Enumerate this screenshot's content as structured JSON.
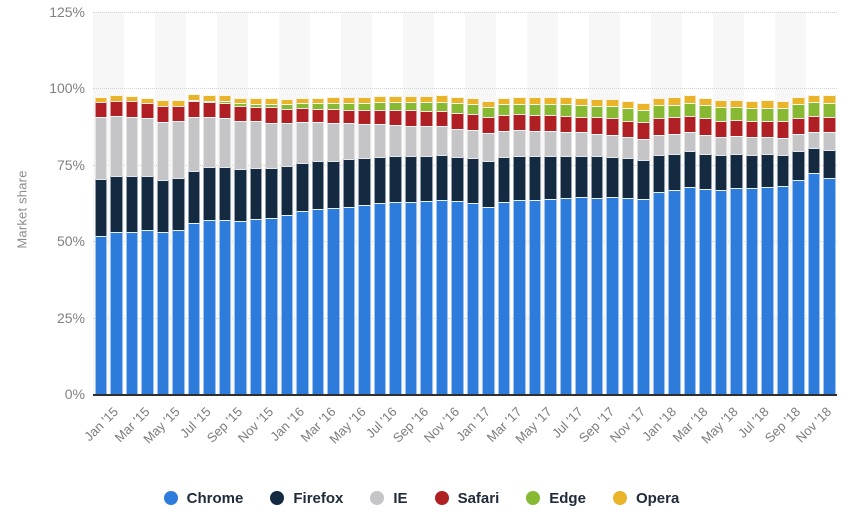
{
  "y_axis": {
    "title": "Market share",
    "tick_labels": [
      "0%",
      "25%",
      "50%",
      "75%",
      "100%",
      "125%"
    ]
  },
  "legend": {
    "items": [
      "Chrome",
      "Firefox",
      "IE",
      "Safari",
      "Edge",
      "Opera"
    ]
  },
  "colors": {
    "chrome": "#2d7bdb",
    "firefox": "#132a40",
    "ie": "#c5c5c7",
    "safari": "#b01f24",
    "edge": "#87ba32",
    "opera": "#e9b32a",
    "band": "#f7f7f7",
    "grid": "#d2d2d2",
    "baseline": "#2e2e2e",
    "axis_text": "#7c7c7c",
    "legend_text": "#212b3b"
  },
  "chart_data": {
    "type": "bar",
    "stacked": true,
    "title": "",
    "xlabel": "",
    "ylabel": "Market share",
    "ylim": [
      0,
      125
    ],
    "yticks": [
      0,
      25,
      50,
      75,
      100,
      125
    ],
    "grid": "horizontal-dotted",
    "legend_position": "bottom",
    "x": [
      "Jan '15",
      "Feb '15",
      "Mar '15",
      "Apr '15",
      "May '15",
      "Jun '15",
      "Jul '15",
      "Aug '15",
      "Sep '15",
      "Oct '15",
      "Nov '15",
      "Dec '15",
      "Jan '16",
      "Feb '16",
      "Mar '16",
      "Apr '16",
      "May '16",
      "Jun '16",
      "Jul '16",
      "Aug '16",
      "Sep '16",
      "Oct '16",
      "Nov '16",
      "Dec '16",
      "Jan '17",
      "Feb '17",
      "Mar '17",
      "Apr '17",
      "May '17",
      "Jun '17",
      "Jul '17",
      "Aug '17",
      "Sep '17",
      "Oct '17",
      "Nov '17",
      "Dec '17",
      "Jan '18",
      "Feb '18",
      "Mar '18",
      "Apr '18",
      "May '18",
      "Jun '18",
      "Jul '18",
      "Aug '18",
      "Sep '18",
      "Oct '18",
      "Nov '18",
      "Dec '18"
    ],
    "x_tick_labels": [
      "Jan '15",
      "Mar '15",
      "May '15",
      "Jul '15",
      "Sep '15",
      "Nov '15",
      "Jan '16",
      "Mar '16",
      "May '16",
      "Jul '16",
      "Sep '16",
      "Nov '16",
      "Jan '17",
      "Mar '17",
      "May '17",
      "Jul '17",
      "Sep '17",
      "Nov '17",
      "Jan '18",
      "Mar '18",
      "May '18",
      "Jul '18",
      "Sep '18",
      "Nov '18"
    ],
    "x_tick_every": 2,
    "series": [
      {
        "name": "Chrome",
        "color": "#2d7bdb",
        "values": [
          51.8,
          52.9,
          53.1,
          53.7,
          53.0,
          53.6,
          56.0,
          56.9,
          56.9,
          56.5,
          57.3,
          57.6,
          58.6,
          59.8,
          60.6,
          61.0,
          61.2,
          61.8,
          62.4,
          62.8,
          62.9,
          63.2,
          63.6,
          63.0,
          62.4,
          61.3,
          62.8,
          63.4,
          63.6,
          63.9,
          64.2,
          64.4,
          64.3,
          64.6,
          64.2,
          63.9,
          66.2,
          66.8,
          67.9,
          67.0,
          66.7,
          67.4,
          67.3,
          67.6,
          68.0,
          70.1,
          72.3,
          70.8
        ]
      },
      {
        "name": "Firefox",
        "color": "#132a40",
        "values": [
          18.7,
          18.6,
          18.4,
          17.5,
          17.1,
          17.0,
          17.1,
          17.3,
          17.4,
          17.0,
          16.7,
          16.4,
          16.1,
          15.8,
          15.5,
          15.4,
          15.6,
          15.4,
          15.2,
          15.0,
          14.9,
          14.8,
          14.6,
          14.6,
          14.9,
          15.1,
          14.8,
          14.6,
          14.4,
          14.1,
          13.8,
          13.6,
          13.5,
          13.1,
          12.9,
          12.7,
          11.9,
          11.8,
          11.6,
          11.6,
          11.4,
          11.1,
          10.9,
          10.8,
          10.3,
          9.5,
          8.3,
          9.2
        ]
      },
      {
        "name": "IE",
        "color": "#c5c5c7",
        "values": [
          20.0,
          19.5,
          19.3,
          19.0,
          18.9,
          18.6,
          17.5,
          16.5,
          16.0,
          15.8,
          15.2,
          14.7,
          14.0,
          13.4,
          12.8,
          12.4,
          11.8,
          11.2,
          10.7,
          10.3,
          10.0,
          9.7,
          9.4,
          9.2,
          9.2,
          9.0,
          8.6,
          8.4,
          8.2,
          8.0,
          7.8,
          7.6,
          7.4,
          7.2,
          7.0,
          6.8,
          6.6,
          6.4,
          6.2,
          6.1,
          6.0,
          5.9,
          5.8,
          5.7,
          5.6,
          5.5,
          5.3,
          5.6
        ]
      },
      {
        "name": "Safari",
        "color": "#b01f24",
        "values": [
          5.0,
          5.0,
          5.1,
          5.0,
          5.3,
          5.1,
          5.2,
          5.0,
          4.9,
          5.0,
          4.8,
          5.1,
          4.7,
          4.5,
          4.4,
          4.5,
          4.5,
          4.7,
          4.8,
          4.9,
          5.0,
          5.0,
          5.1,
          5.2,
          5.1,
          5.2,
          5.2,
          5.1,
          5.2,
          5.3,
          5.3,
          5.2,
          5.3,
          5.4,
          5.4,
          5.5,
          5.6,
          5.5,
          5.4,
          5.5,
          5.4,
          5.3,
          5.2,
          5.3,
          5.4,
          5.3,
          5.2,
          5.0
        ]
      },
      {
        "name": "Edge",
        "color": "#87ba32",
        "values": [
          0,
          0,
          0,
          0,
          0,
          0,
          0.1,
          0.3,
          0.6,
          0.8,
          1.0,
          1.2,
          1.4,
          1.6,
          1.8,
          2.0,
          2.1,
          2.3,
          2.5,
          2.6,
          2.8,
          2.9,
          3.0,
          3.1,
          3.2,
          3.3,
          3.4,
          3.5,
          3.6,
          3.7,
          3.8,
          3.9,
          3.9,
          4.0,
          4.0,
          4.1,
          4.2,
          4.2,
          4.2,
          4.3,
          4.3,
          4.2,
          4.3,
          4.3,
          4.3,
          4.4,
          4.4,
          4.6
        ]
      },
      {
        "name": "Opera",
        "color": "#e9b32a",
        "values": [
          1.6,
          1.7,
          1.6,
          1.7,
          1.8,
          1.9,
          2.0,
          1.9,
          1.9,
          1.9,
          2.0,
          2.0,
          1.9,
          1.9,
          1.9,
          1.9,
          1.9,
          1.9,
          1.8,
          1.8,
          1.8,
          1.9,
          2.0,
          2.0,
          2.0,
          2.1,
          2.1,
          2.1,
          2.2,
          2.2,
          2.3,
          2.3,
          2.3,
          2.3,
          2.4,
          2.4,
          2.4,
          2.4,
          2.4,
          2.4,
          2.4,
          2.4,
          2.4,
          2.4,
          2.4,
          2.4,
          2.4,
          2.6
        ]
      }
    ]
  }
}
